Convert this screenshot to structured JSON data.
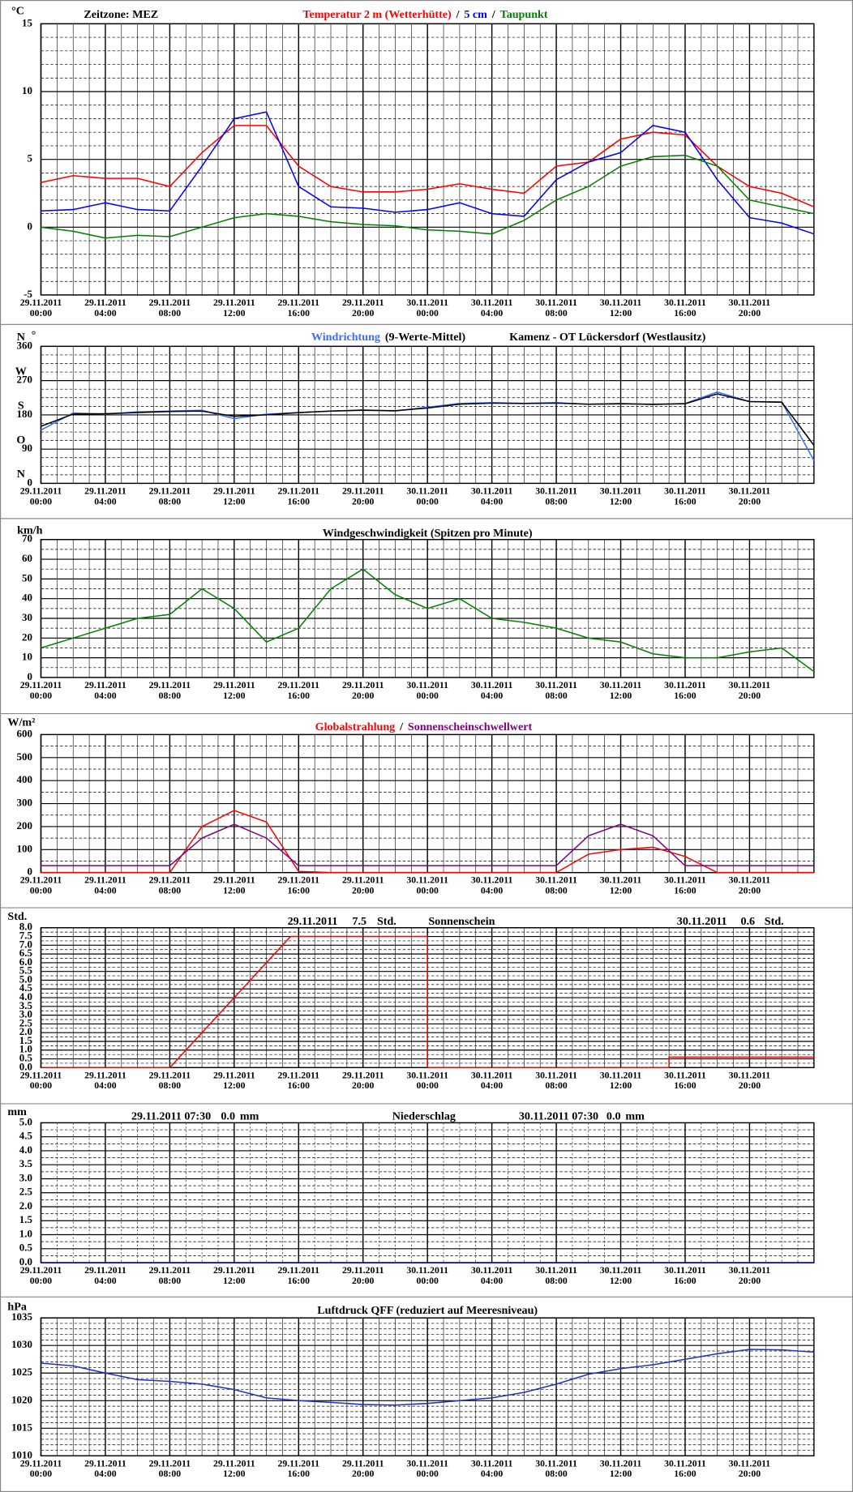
{
  "chart_data": [
    {
      "type": "line",
      "ylabel": "°C",
      "timezone": "Zeitzone: MEZ",
      "title_separator": "/",
      "x": [
        "29.11.2011 00:00",
        "29.11.2011 02:00",
        "29.11.2011 04:00",
        "29.11.2011 06:00",
        "29.11.2011 08:00",
        "29.11.2011 10:00",
        "29.11.2011 12:00",
        "29.11.2011 14:00",
        "29.11.2011 16:00",
        "29.11.2011 18:00",
        "29.11.2011 20:00",
        "29.11.2011 22:00",
        "30.11.2011 00:00",
        "30.11.2011 02:00",
        "30.11.2011 04:00",
        "30.11.2011 06:00",
        "30.11.2011 08:00",
        "30.11.2011 10:00",
        "30.11.2011 12:00",
        "30.11.2011 14:00",
        "30.11.2011 16:00",
        "30.11.2011 18:00",
        "30.11.2011 20:00",
        "30.11.2011 22:00",
        "30.11.2011 24:00"
      ],
      "xlim": [
        "29.11.2011 00:00",
        "30.11.2011 24:00"
      ],
      "xticks": [
        "29.11.2011 00:00",
        "29.11.2011 04:00",
        "29.11.2011 08:00",
        "29.11.2011 12:00",
        "29.11.2011 16:00",
        "29.11.2011 20:00",
        "30.11.2011 00:00",
        "30.11.2011 04:00",
        "30.11.2011 08:00",
        "30.11.2011 12:00",
        "30.11.2011 16:00",
        "30.11.2011 20:00"
      ],
      "ylim": [
        -5,
        15
      ],
      "yticks": [
        -5,
        0,
        5,
        10,
        15
      ],
      "grid": true,
      "series": [
        {
          "name": "Temperatur 2 m (Wetterhütte)",
          "color": "#ff0000",
          "values": [
            3.3,
            3.8,
            3.6,
            3.6,
            3.0,
            5.5,
            7.5,
            7.5,
            4.5,
            3.0,
            2.6,
            2.6,
            2.8,
            3.2,
            2.8,
            2.5,
            4.5,
            4.8,
            6.5,
            7.0,
            6.8,
            4.5,
            3.0,
            2.5,
            1.5
          ]
        },
        {
          "name": "5 cm",
          "color": "#0000ff",
          "values": [
            1.2,
            1.3,
            1.8,
            1.3,
            1.2,
            4.5,
            8.0,
            8.5,
            3.0,
            1.5,
            1.4,
            1.1,
            1.3,
            1.8,
            1.0,
            0.8,
            3.5,
            4.8,
            5.5,
            7.5,
            7.0,
            3.5,
            0.7,
            0.3,
            -0.5
          ]
        },
        {
          "name": "Taupunkt",
          "color": "#008000",
          "values": [
            0,
            -0.3,
            -0.8,
            -0.6,
            -0.7,
            0,
            0.7,
            1.0,
            0.8,
            0.4,
            0.2,
            0.1,
            -0.2,
            -0.3,
            -0.5,
            0.5,
            2.0,
            3.0,
            4.5,
            5.2,
            5.3,
            4.5,
            2.0,
            1.5,
            1.0
          ]
        }
      ]
    },
    {
      "type": "line",
      "ylabel": "°",
      "station": "Kamenz - OT Lückersdorf (Westlausitz)",
      "x": [
        "29.11.2011 00:00",
        "29.11.2011 02:00",
        "29.11.2011 04:00",
        "29.11.2011 06:00",
        "29.11.2011 08:00",
        "29.11.2011 10:00",
        "29.11.2011 12:00",
        "29.11.2011 14:00",
        "29.11.2011 16:00",
        "29.11.2011 18:00",
        "29.11.2011 20:00",
        "29.11.2011 22:00",
        "30.11.2011 00:00",
        "30.11.2011 02:00",
        "30.11.2011 04:00",
        "30.11.2011 06:00",
        "30.11.2011 08:00",
        "30.11.2011 10:00",
        "30.11.2011 12:00",
        "30.11.2011 14:00",
        "30.11.2011 16:00",
        "30.11.2011 18:00",
        "30.11.2011 20:00",
        "30.11.2011 22:00",
        "30.11.2011 24:00"
      ],
      "xlim": [
        "29.11.2011 00:00",
        "30.11.2011 24:00"
      ],
      "xticks": [
        "29.11.2011 00:00",
        "29.11.2011 04:00",
        "29.11.2011 08:00",
        "29.11.2011 12:00",
        "29.11.2011 16:00",
        "29.11.2011 20:00",
        "30.11.2011 00:00",
        "30.11.2011 04:00",
        "30.11.2011 08:00",
        "30.11.2011 12:00",
        "30.11.2011 16:00",
        "30.11.2011 20:00"
      ],
      "ylim": [
        0,
        360
      ],
      "yticks": [
        0,
        90,
        180,
        270,
        360
      ],
      "grid": true,
      "ytick_compass": [
        {
          "value": 0,
          "label": "N"
        },
        {
          "value": 90,
          "label": "O"
        },
        {
          "value": 180,
          "label": "S"
        },
        {
          "value": 270,
          "label": "W"
        },
        {
          "value": 360,
          "label": "N"
        }
      ],
      "series": [
        {
          "name": "Windrichtung",
          "color": "#3a6cff",
          "values": [
            140,
            185,
            182,
            188,
            190,
            192,
            170,
            182,
            186,
            190,
            193,
            190,
            200,
            210,
            212,
            210,
            212,
            208,
            210,
            207,
            210,
            240,
            215,
            214,
            60
          ]
        },
        {
          "name": "(9-Werte-Mittel)",
          "color": "#000000",
          "values": [
            150,
            182,
            183,
            186,
            189,
            190,
            176,
            180,
            186,
            190,
            192,
            191,
            198,
            208,
            211,
            210,
            211,
            208,
            209,
            208,
            209,
            235,
            215,
            213,
            100
          ]
        }
      ]
    },
    {
      "type": "line",
      "ylabel": "km/h",
      "title": "Windgeschwindigkeit (Spitzen pro Minute)",
      "x": [
        "29.11.2011 00:00",
        "29.11.2011 02:00",
        "29.11.2011 04:00",
        "29.11.2011 06:00",
        "29.11.2011 08:00",
        "29.11.2011 10:00",
        "29.11.2011 12:00",
        "29.11.2011 14:00",
        "29.11.2011 16:00",
        "29.11.2011 18:00",
        "29.11.2011 20:00",
        "29.11.2011 22:00",
        "30.11.2011 00:00",
        "30.11.2011 02:00",
        "30.11.2011 04:00",
        "30.11.2011 06:00",
        "30.11.2011 08:00",
        "30.11.2011 10:00",
        "30.11.2011 12:00",
        "30.11.2011 14:00",
        "30.11.2011 16:00",
        "30.11.2011 18:00",
        "30.11.2011 20:00",
        "30.11.2011 22:00",
        "30.11.2011 24:00"
      ],
      "xlim": [
        "29.11.2011 00:00",
        "30.11.2011 24:00"
      ],
      "xticks": [
        "29.11.2011 00:00",
        "29.11.2011 04:00",
        "29.11.2011 08:00",
        "29.11.2011 12:00",
        "29.11.2011 16:00",
        "29.11.2011 20:00",
        "30.11.2011 00:00",
        "30.11.2011 04:00",
        "30.11.2011 08:00",
        "30.11.2011 12:00",
        "30.11.2011 16:00",
        "30.11.2011 20:00"
      ],
      "ylim": [
        0,
        70
      ],
      "yticks": [
        0,
        10,
        20,
        30,
        40,
        50,
        60,
        70
      ],
      "grid": true,
      "series": [
        {
          "color": "#008000",
          "values": [
            15,
            20,
            25,
            30,
            32,
            45,
            35,
            18,
            25,
            45,
            55,
            42,
            35,
            40,
            30,
            28,
            25,
            20,
            18,
            12,
            10,
            10,
            13,
            15,
            3
          ]
        }
      ]
    },
    {
      "type": "line",
      "ylabel": "W/m²",
      "title_separator": "/",
      "x": [
        "29.11.2011 00:00",
        "29.11.2011 02:00",
        "29.11.2011 04:00",
        "29.11.2011 06:00",
        "29.11.2011 08:00",
        "29.11.2011 10:00",
        "29.11.2011 12:00",
        "29.11.2011 14:00",
        "29.11.2011 16:00",
        "29.11.2011 18:00",
        "29.11.2011 20:00",
        "29.11.2011 22:00",
        "30.11.2011 00:00",
        "30.11.2011 02:00",
        "30.11.2011 04:00",
        "30.11.2011 06:00",
        "30.11.2011 08:00",
        "30.11.2011 10:00",
        "30.11.2011 12:00",
        "30.11.2011 14:00",
        "30.11.2011 16:00",
        "30.11.2011 18:00",
        "30.11.2011 20:00",
        "30.11.2011 22:00",
        "30.11.2011 24:00"
      ],
      "xlim": [
        "29.11.2011 00:00",
        "30.11.2011 24:00"
      ],
      "xticks": [
        "29.11.2011 00:00",
        "29.11.2011 04:00",
        "29.11.2011 08:00",
        "29.11.2011 12:00",
        "29.11.2011 16:00",
        "29.11.2011 20:00",
        "30.11.2011 00:00",
        "30.11.2011 04:00",
        "30.11.2011 08:00",
        "30.11.2011 12:00",
        "30.11.2011 16:00",
        "30.11.2011 20:00"
      ],
      "ylim": [
        0,
        600
      ],
      "yticks": [
        0,
        100,
        200,
        300,
        400,
        500,
        600
      ],
      "grid": true,
      "series": [
        {
          "name": "Globalstrahlung",
          "color": "#ff0000",
          "values": [
            0,
            0,
            0,
            0,
            0,
            200,
            270,
            220,
            5,
            0,
            0,
            0,
            0,
            0,
            0,
            0,
            0,
            80,
            100,
            110,
            70,
            0,
            0,
            0,
            0
          ]
        },
        {
          "name": "Sonnenscheinschwellwert",
          "color": "#800080",
          "values": [
            30,
            30,
            30,
            30,
            30,
            150,
            210,
            150,
            30,
            30,
            30,
            30,
            30,
            30,
            30,
            30,
            30,
            160,
            210,
            160,
            30,
            30,
            30,
            30,
            30
          ]
        }
      ]
    },
    {
      "type": "line",
      "ylabel": "Std.",
      "title": "Sonnenschein",
      "daily_totals": [
        {
          "date": "29.11.2011",
          "value": 7.5,
          "unit": "Std."
        },
        {
          "date": "30.11.2011",
          "value": 0.6,
          "unit": "Std."
        }
      ],
      "x": [
        "29.11.2011 00:00",
        "29.11.2011 08:00",
        "29.11.2011 15:30",
        "30.11.2011 00:00",
        "30.11.2011 00:00",
        "30.11.2011 15:00",
        "30.11.2011 15:00",
        "30.11.2011 24:00"
      ],
      "xlim": [
        "29.11.2011 00:00",
        "30.11.2011 24:00"
      ],
      "xticks": [
        "29.11.2011 00:00",
        "29.11.2011 04:00",
        "29.11.2011 08:00",
        "29.11.2011 12:00",
        "29.11.2011 16:00",
        "29.11.2011 20:00",
        "30.11.2011 00:00",
        "30.11.2011 04:00",
        "30.11.2011 08:00",
        "30.11.2011 12:00",
        "30.11.2011 16:00",
        "30.11.2011 20:00"
      ],
      "ylim": [
        0,
        8
      ],
      "yticks": [
        {
          "value": 0,
          "label": "0.0"
        },
        0.5,
        {
          "value": 1,
          "label": "1.0"
        },
        1.5,
        {
          "value": 2,
          "label": "2.0"
        },
        2.5,
        {
          "value": 3,
          "label": "3.0"
        },
        3.5,
        {
          "value": 4,
          "label": "4.0"
        },
        4.5,
        {
          "value": 5,
          "label": "5.0"
        },
        5.5,
        {
          "value": 6,
          "label": "6.0"
        },
        6.5,
        {
          "value": 7,
          "label": "7.0"
        },
        7.5,
        {
          "value": 8,
          "label": "8.0"
        }
      ],
      "grid": true,
      "series": [
        {
          "color": "#ff0000",
          "values": [
            0,
            0,
            7.5,
            7.5,
            0,
            0,
            0.6,
            0.6
          ]
        }
      ]
    },
    {
      "type": "line",
      "ylabel": "mm",
      "title": "Niederschlag",
      "daily_totals": [
        {
          "date": "29.11.2011 07:30",
          "value": 0,
          "value_label": "0.0",
          "unit": "mm"
        },
        {
          "date": "30.11.2011 07:30",
          "value": 0,
          "value_label": "0.0",
          "unit": "mm"
        }
      ],
      "x": [
        "29.11.2011 00:00",
        "30.11.2011 24:00"
      ],
      "xlim": [
        "29.11.2011 00:00",
        "30.11.2011 24:00"
      ],
      "xticks": [
        "29.11.2011 00:00",
        "29.11.2011 04:00",
        "29.11.2011 08:00",
        "29.11.2011 12:00",
        "29.11.2011 16:00",
        "29.11.2011 20:00",
        "30.11.2011 00:00",
        "30.11.2011 04:00",
        "30.11.2011 08:00",
        "30.11.2011 12:00",
        "30.11.2011 16:00",
        "30.11.2011 20:00"
      ],
      "ylim": [
        0,
        5
      ],
      "yticks": [
        {
          "value": 0,
          "label": "0.0"
        },
        0.5,
        {
          "value": 1,
          "label": "1.0"
        },
        1.5,
        {
          "value": 2,
          "label": "2.0"
        },
        2.5,
        {
          "value": 3,
          "label": "3.0"
        },
        3.5,
        {
          "value": 4,
          "label": "4.0"
        },
        4.5,
        {
          "value": 5,
          "label": "5.0"
        }
      ],
      "grid": true,
      "series": [
        {
          "color": "#0000ff",
          "values": [
            0,
            0
          ]
        }
      ]
    },
    {
      "type": "line",
      "ylabel": "hPa",
      "title": "Luftdruck QFF (reduziert auf Meeresniveau)",
      "x": [
        "29.11.2011 00:00",
        "29.11.2011 02:00",
        "29.11.2011 04:00",
        "29.11.2011 06:00",
        "29.11.2011 08:00",
        "29.11.2011 10:00",
        "29.11.2011 12:00",
        "29.11.2011 14:00",
        "29.11.2011 16:00",
        "29.11.2011 18:00",
        "29.11.2011 20:00",
        "29.11.2011 22:00",
        "30.11.2011 00:00",
        "30.11.2011 02:00",
        "30.11.2011 04:00",
        "30.11.2011 06:00",
        "30.11.2011 08:00",
        "30.11.2011 10:00",
        "30.11.2011 12:00",
        "30.11.2011 14:00",
        "30.11.2011 16:00",
        "30.11.2011 18:00",
        "30.11.2011 20:00",
        "30.11.2011 22:00",
        "30.11.2011 24:00"
      ],
      "xlim": [
        "29.11.2011 00:00",
        "30.11.2011 24:00"
      ],
      "xticks": [
        "29.11.2011 00:00",
        "29.11.2011 04:00",
        "29.11.2011 08:00",
        "29.11.2011 12:00",
        "29.11.2011 16:00",
        "29.11.2011 20:00",
        "30.11.2011 00:00",
        "30.11.2011 04:00",
        "30.11.2011 08:00",
        "30.11.2011 12:00",
        "30.11.2011 16:00",
        "30.11.2011 20:00"
      ],
      "ylim": [
        1010,
        1035
      ],
      "yticks": [
        1010,
        1015,
        1020,
        1025,
        1030,
        1035
      ],
      "grid": true,
      "series": [
        {
          "color": "#2030c8",
          "values": [
            1026.8,
            1026.3,
            1025,
            1023.8,
            1023.5,
            1023,
            1022,
            1020.5,
            1020,
            1019.7,
            1019.3,
            1019.2,
            1019.5,
            1020,
            1020.5,
            1021.5,
            1023,
            1024.8,
            1025.8,
            1026.5,
            1027.5,
            1028.5,
            1029.3,
            1029.2,
            1028.8
          ]
        }
      ]
    }
  ]
}
